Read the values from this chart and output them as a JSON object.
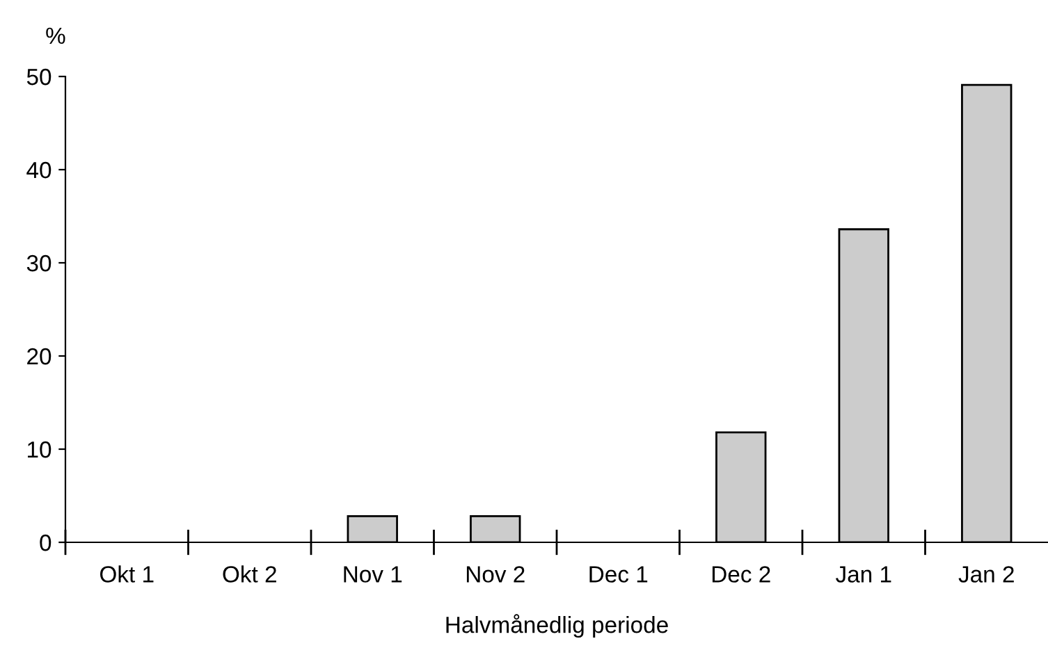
{
  "chart_data": {
    "type": "bar",
    "ylabel": "%",
    "xlabel": "Halvmånedlig periode",
    "categories": [
      "Okt 1",
      "Okt 2",
      "Nov 1",
      "Nov 2",
      "Dec 1",
      "Dec 2",
      "Jan 1",
      "Jan 2"
    ],
    "values": [
      0,
      0,
      2.8,
      2.8,
      0,
      11.8,
      33.6,
      49.1
    ],
    "color": "#cccccc",
    "ylim": [
      0,
      50
    ],
    "yticks": [
      0,
      10,
      20,
      30,
      40,
      50
    ],
    "grid": false
  }
}
